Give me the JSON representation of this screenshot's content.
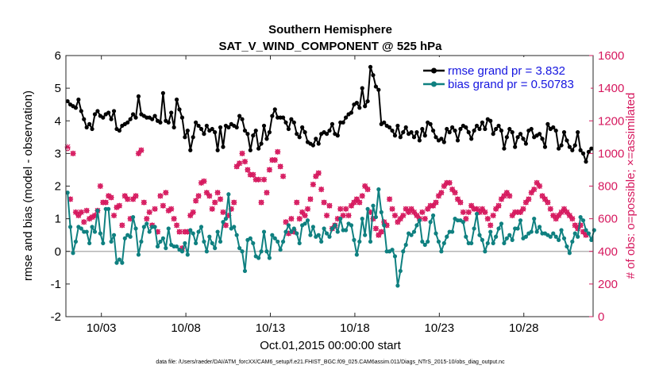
{
  "chart_data": {
    "type": "line",
    "title": "Southern Hemisphere",
    "subtitle": "SAT_V_WIND_COMPONENT @ 525 hPa",
    "xlabel": "Oct.01,2015 00:00:00 start",
    "ylabel": "rmse and bias (model - observation)",
    "ylabel_right": "# of obs: o=possible; ×=assimilated",
    "footnote": "data file: /Users/raeder/DAI/ATM_forcXX/CAM6_setup/f.e21.FHIST_BGC.f09_025.CAM6assim.011/Diags_NTrS_2015-10/obs_diag_output.nc",
    "xlim": [
      0.9,
      32.1
    ],
    "ylim": [
      -2,
      6
    ],
    "ylim_right": [
      0,
      1600
    ],
    "xticks": [
      3,
      8,
      13,
      18,
      23,
      28
    ],
    "xtick_labels": [
      "10/03",
      "10/08",
      "10/13",
      "10/18",
      "10/23",
      "10/28"
    ],
    "yticks": [
      -2,
      -1,
      0,
      1,
      2,
      3,
      4,
      5,
      6
    ],
    "yticks_right": [
      0,
      200,
      400,
      600,
      800,
      1000,
      1200,
      1400,
      1600
    ],
    "legend_position": "top-right",
    "colors": {
      "rmse": "#000000",
      "bias": "#0f8080",
      "obs": "#d6185e",
      "zero": "#b4b4b4"
    },
    "series": [
      {
        "name": "rmse",
        "legend": "rmse grand pr = 3.832",
        "values": [
          4.6,
          4.5,
          4.45,
          4.4,
          4.65,
          4.3,
          4.05,
          3.8,
          3.9,
          3.75,
          4.2,
          4.3,
          4.15,
          4.1,
          4.2,
          4.25,
          4.05,
          4.3,
          3.75,
          3.7,
          3.85,
          3.9,
          3.95,
          4.05,
          4.2,
          4.1,
          4.75,
          4.2,
          4.15,
          4.1,
          4.1,
          4.05,
          4.15,
          4.0,
          3.95,
          4.85,
          4.0,
          3.95,
          4.25,
          3.8,
          4.65,
          4.35,
          4.1,
          3.5,
          3.7,
          3.1,
          3.5,
          3.95,
          3.85,
          3.75,
          3.6,
          3.85,
          3.7,
          3.75,
          3.65,
          3.1,
          3.8,
          3.2,
          3.85,
          3.8,
          3.9,
          3.85,
          3.8,
          4.15,
          4.05,
          3.7,
          3.6,
          3.1,
          3.55,
          3.7,
          3.15,
          3.3,
          3.85,
          3.45,
          3.65,
          4.15,
          4.35,
          4.1,
          4.1,
          4.1,
          3.95,
          3.75,
          4.05,
          3.95,
          3.6,
          3.5,
          3.8,
          3.65,
          3.35,
          3.3,
          3.25,
          3.45,
          3.3,
          3.6,
          3.65,
          3.6,
          3.7,
          3.9,
          3.6,
          3.55,
          3.95,
          3.95,
          4.1,
          4.2,
          4.25,
          4.5,
          4.55,
          4.4,
          5.0,
          4.45,
          4.6,
          5.65,
          5.4,
          5.05,
          4.95,
          3.9,
          3.95,
          3.85,
          3.8,
          3.7,
          3.55,
          3.85,
          3.5,
          3.65,
          3.8,
          3.6,
          3.65,
          3.5,
          3.65,
          3.4,
          3.75,
          3.55,
          3.95,
          3.9,
          3.7,
          3.5,
          3.4,
          3.45,
          3.35,
          3.75,
          3.65,
          3.8,
          3.7,
          3.4,
          3.75,
          3.85,
          3.8,
          3.65,
          3.45,
          3.7,
          3.85,
          3.75,
          3.95,
          3.75,
          4.05,
          4.0,
          3.6,
          3.75,
          3.85,
          3.7,
          3.15,
          3.5,
          3.75,
          3.65,
          3.2,
          3.5,
          3.6,
          3.45,
          3.3,
          3.7,
          3.75,
          3.5,
          3.55,
          3.6,
          3.45,
          3.2,
          3.9,
          3.75,
          3.8,
          3.7,
          3.15,
          3.25,
          3.65,
          3.4,
          3.2,
          3.1,
          3.25,
          3.65,
          3.1,
          3.0,
          2.75,
          3.05,
          3.15
        ]
      },
      {
        "name": "bias",
        "legend": "bias grand pr = 0.50783",
        "values": [
          1.8,
          0.75,
          -0.05,
          0.3,
          0.75,
          0.7,
          0.6,
          0.6,
          0.25,
          0.75,
          0.6,
          1.25,
          0.55,
          0.25,
          1.3,
          1.3,
          0.3,
          0.5,
          -0.35,
          -0.25,
          -0.35,
          0.4,
          0.5,
          0.45,
          1.05,
          0.7,
          -0.1,
          0.3,
          0.75,
          0.85,
          0.6,
          0.75,
          0.75,
          0.15,
          0.3,
          0.4,
          0.1,
          0.7,
          0.2,
          0.15,
          0.15,
          0.05,
          0.0,
          0.25,
          -0.1,
          0.65,
          0.55,
          0.25,
          0.6,
          0.75,
          0.3,
          0.0,
          0.45,
          0.25,
          0.1,
          0.6,
          0.3,
          0.9,
          1.0,
          1.75,
          0.7,
          0.75,
          0.5,
          0.1,
          0.0,
          -0.6,
          0.35,
          0.4,
          0.25,
          -0.15,
          -0.2,
          0.0,
          0.6,
          0.0,
          -0.2,
          0.5,
          0.4,
          0.3,
          0.05,
          0.3,
          0.6,
          0.8,
          0.6,
          0.7,
          0.55,
          0.25,
          0.8,
          0.85,
          0.95,
          0.5,
          0.75,
          0.45,
          0.5,
          0.3,
          0.7,
          0.55,
          0.45,
          0.7,
          0.8,
          0.6,
          1.0,
          0.65,
          0.65,
          0.85,
          0.8,
          0.35,
          -0.1,
          0.3,
          1.0,
          0.5,
          1.3,
          0.3,
          1.4,
          1.05,
          1.9,
          1.2,
          0.8,
          0.0,
          0.0,
          0.05,
          -0.15,
          -1.05,
          -0.6,
          0.0,
          0.2,
          0.55,
          0.5,
          0.6,
          0.8,
          0.95,
          0.3,
          0.2,
          0.3,
          0.9,
          1.1,
          0.55,
          0.3,
          0.0,
          0.25,
          0.45,
          0.6,
          0.6,
          1.0,
          0.95,
          0.95,
          0.9,
          0.45,
          0.25,
          0.25,
          0.7,
          1.15,
          0.5,
          0.35,
          0.0,
          0.25,
          0.6,
          0.25,
          0.45,
          0.7,
          0.85,
          0.25,
          0.4,
          0.5,
          0.35,
          0.7,
          0.7,
          0.95,
          0.4,
          0.45,
          0.55,
          0.6,
          1.0,
          0.6,
          0.75,
          0.55,
          0.55,
          0.5,
          0.45,
          0.55,
          0.45,
          0.35,
          0.65,
          0.4,
          0.15,
          -0.05,
          0.3,
          0.55,
          0.45,
          1.05,
          0.95,
          0.65,
          0.55,
          0.35,
          0.65
        ]
      },
      {
        "name": "obs_possible",
        "marker": "o",
        "values": [
          1030,
          720,
          1000,
          640,
          620,
          640,
          580,
          650,
          600,
          610,
          620,
          650,
          800,
          700,
          700,
          740,
          730,
          620,
          670,
          680,
          560,
          740,
          720,
          600,
          720,
          740,
          1000,
          1020,
          700,
          600,
          640,
          560,
          660,
          520,
          740,
          680,
          760,
          650,
          660,
          600,
          560,
          520,
          420,
          520,
          520,
          620,
          640,
          710,
          740,
          820,
          830,
          760,
          740,
          660,
          700,
          760,
          720,
          640,
          560,
          620,
          660,
          700,
          920,
          940,
          1000,
          950,
          900,
          870,
          870,
          840,
          840,
          700,
          840,
          760,
          900,
          960,
          960,
          1010,
          920,
          860,
          580,
          510,
          600,
          520,
          700,
          600,
          640,
          620,
          660,
          720,
          810,
          860,
          880,
          780,
          700,
          620,
          680,
          540,
          560,
          600,
          660,
          620,
          660,
          620,
          680,
          700,
          720,
          700,
          740,
          800,
          780,
          640,
          600,
          540,
          500,
          520,
          580,
          560,
          720,
          660,
          620,
          580,
          600,
          620,
          660,
          640,
          660,
          640,
          620,
          600,
          640,
          600,
          660,
          680,
          680,
          700,
          740,
          760,
          800,
          820,
          820,
          780,
          760,
          720,
          700,
          640,
          600,
          640,
          680,
          660,
          660,
          640,
          660,
          640,
          600,
          560,
          620,
          660,
          680,
          720,
          740,
          760,
          740,
          620,
          640,
          640,
          640,
          660,
          700,
          720,
          760,
          780,
          820,
          800,
          740,
          720,
          700,
          660,
          620,
          600,
          620,
          640,
          660,
          640,
          620,
          600,
          560,
          540,
          560,
          520,
          500
        ]
      },
      {
        "name": "obs_assimilated",
        "marker": "x",
        "values": [
          1040,
          720,
          1000,
          640,
          620,
          640,
          580,
          650,
          600,
          610,
          620,
          650,
          800,
          700,
          700,
          740,
          730,
          620,
          670,
          680,
          560,
          740,
          720,
          600,
          720,
          740,
          1000,
          1020,
          700,
          600,
          640,
          560,
          660,
          520,
          740,
          680,
          760,
          650,
          660,
          600,
          560,
          520,
          420,
          520,
          520,
          620,
          640,
          710,
          740,
          820,
          830,
          760,
          740,
          660,
          700,
          760,
          720,
          640,
          560,
          620,
          660,
          700,
          920,
          940,
          1000,
          950,
          900,
          870,
          870,
          840,
          840,
          700,
          840,
          760,
          900,
          960,
          960,
          1010,
          920,
          860,
          580,
          510,
          600,
          520,
          700,
          600,
          640,
          620,
          660,
          720,
          810,
          860,
          880,
          780,
          700,
          620,
          680,
          540,
          560,
          600,
          660,
          620,
          660,
          620,
          680,
          700,
          720,
          700,
          740,
          800,
          780,
          640,
          600,
          540,
          500,
          520,
          580,
          560,
          720,
          660,
          620,
          580,
          600,
          620,
          660,
          640,
          660,
          640,
          620,
          600,
          640,
          600,
          660,
          680,
          680,
          700,
          740,
          760,
          800,
          820,
          820,
          780,
          760,
          720,
          700,
          640,
          600,
          640,
          680,
          660,
          660,
          640,
          660,
          640,
          600,
          560,
          620,
          660,
          680,
          720,
          740,
          760,
          740,
          620,
          640,
          640,
          640,
          660,
          700,
          720,
          760,
          780,
          820,
          800,
          740,
          720,
          700,
          660,
          620,
          600,
          620,
          640,
          660,
          640,
          620,
          600,
          560,
          540,
          560,
          520,
          500
        ]
      }
    ]
  }
}
